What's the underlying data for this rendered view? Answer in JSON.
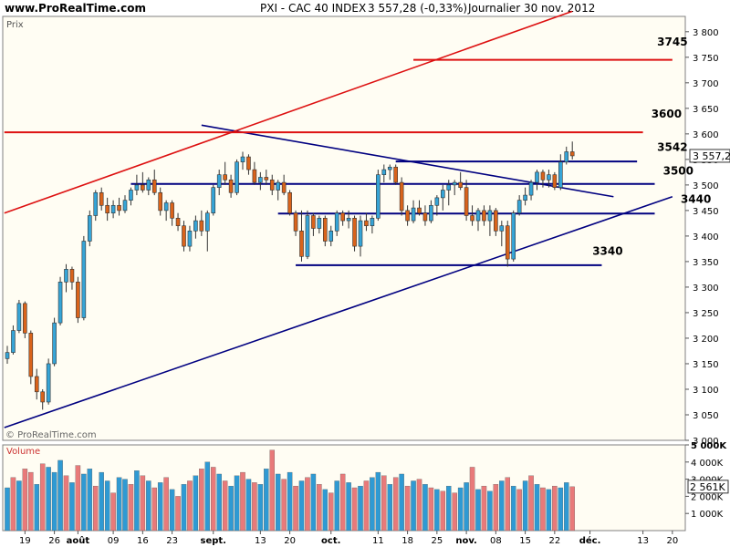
{
  "header": {
    "site": "www.ProRealTime.com",
    "instrument": "PXI - CAC 40 INDEX",
    "quote": "3 557,28 (-0,33%)",
    "period": "Journalier 30 nov. 2012"
  },
  "price_panel_label": "Prix",
  "volume_panel_label": "Volume",
  "watermark": "© ProRealTime.com",
  "colors": {
    "up": "#36a4d6",
    "down": "#d9631b",
    "support": "#000080",
    "resistance": "#dd1111",
    "vol_up": "#2f9ad3",
    "vol_down": "#e87a7a",
    "background": "#fffdf3"
  },
  "chart_data": {
    "type": "candlestick",
    "price_axis": {
      "ylim": [
        3000,
        3830
      ],
      "ticks": [
        3000,
        3050,
        3100,
        3150,
        3200,
        3250,
        3300,
        3350,
        3400,
        3450,
        3500,
        3550,
        3600,
        3650,
        3700,
        3750,
        3800
      ],
      "tick_labels": [
        "3 000",
        "3 050",
        "3 100",
        "3 150",
        "3 200",
        "3 250",
        "3 300",
        "3 350",
        "3 400",
        "3 450",
        "3 500",
        "3 550",
        "3 600",
        "3 650",
        "3 700",
        "3 750",
        "3 800"
      ],
      "last_value_label": "3 557,28"
    },
    "volume_axis": {
      "ylim": [
        0,
        5000
      ],
      "ticks": [
        1000,
        2000,
        3000,
        4000,
        5000
      ],
      "tick_labels": [
        "1 000K",
        "2 000K",
        "3 000K",
        "4 000K",
        "5 000K"
      ],
      "last_value_label": "2 561K"
    },
    "x_axis": {
      "labels": [
        {
          "i": 3,
          "text": "19",
          "bold": false
        },
        {
          "i": 8,
          "text": "26",
          "bold": false
        },
        {
          "i": 12,
          "text": "août",
          "bold": true
        },
        {
          "i": 18,
          "text": "09",
          "bold": false
        },
        {
          "i": 23,
          "text": "16",
          "bold": false
        },
        {
          "i": 28,
          "text": "23",
          "bold": false
        },
        {
          "i": 35,
          "text": "sept.",
          "bold": true
        },
        {
          "i": 43,
          "text": "13",
          "bold": false
        },
        {
          "i": 48,
          "text": "20",
          "bold": false
        },
        {
          "i": 55,
          "text": "oct.",
          "bold": true
        },
        {
          "i": 63,
          "text": "11",
          "bold": false
        },
        {
          "i": 68,
          "text": "18",
          "bold": false
        },
        {
          "i": 73,
          "text": "25",
          "bold": false
        },
        {
          "i": 78,
          "text": "nov.",
          "bold": true
        },
        {
          "i": 83,
          "text": "08",
          "bold": false
        },
        {
          "i": 88,
          "text": "15",
          "bold": false
        },
        {
          "i": 93,
          "text": "22",
          "bold": false
        },
        {
          "i": 99,
          "text": "déc.",
          "bold": true
        },
        {
          "i": 108,
          "text": "13",
          "bold": false
        },
        {
          "i": 113,
          "text": "20",
          "bold": false
        }
      ]
    },
    "candles": [
      [
        3160,
        3185,
        3150,
        3172
      ],
      [
        3172,
        3225,
        3168,
        3215
      ],
      [
        3215,
        3275,
        3210,
        3268
      ],
      [
        3268,
        3272,
        3200,
        3210
      ],
      [
        3210,
        3215,
        3110,
        3125
      ],
      [
        3125,
        3140,
        3080,
        3095
      ],
      [
        3095,
        3100,
        3060,
        3075
      ],
      [
        3075,
        3160,
        3070,
        3150
      ],
      [
        3150,
        3240,
        3145,
        3230
      ],
      [
        3230,
        3320,
        3225,
        3310
      ],
      [
        3310,
        3345,
        3290,
        3335
      ],
      [
        3335,
        3340,
        3295,
        3310
      ],
      [
        3310,
        3320,
        3230,
        3240
      ],
      [
        3240,
        3400,
        3235,
        3390
      ],
      [
        3390,
        3450,
        3380,
        3440
      ],
      [
        3440,
        3490,
        3430,
        3485
      ],
      [
        3485,
        3495,
        3450,
        3460
      ],
      [
        3460,
        3475,
        3430,
        3445
      ],
      [
        3445,
        3470,
        3435,
        3460
      ],
      [
        3460,
        3475,
        3440,
        3450
      ],
      [
        3450,
        3480,
        3445,
        3470
      ],
      [
        3470,
        3495,
        3460,
        3490
      ],
      [
        3490,
        3520,
        3480,
        3500
      ],
      [
        3500,
        3525,
        3485,
        3490
      ],
      [
        3490,
        3515,
        3480,
        3510
      ],
      [
        3510,
        3530,
        3480,
        3485
      ],
      [
        3485,
        3495,
        3440,
        3450
      ],
      [
        3450,
        3470,
        3430,
        3465
      ],
      [
        3465,
        3470,
        3420,
        3435
      ],
      [
        3435,
        3445,
        3410,
        3420
      ],
      [
        3420,
        3430,
        3370,
        3380
      ],
      [
        3380,
        3420,
        3370,
        3410
      ],
      [
        3410,
        3440,
        3395,
        3430
      ],
      [
        3430,
        3450,
        3400,
        3410
      ],
      [
        3410,
        3450,
        3370,
        3445
      ],
      [
        3445,
        3500,
        3440,
        3495
      ],
      [
        3495,
        3530,
        3480,
        3520
      ],
      [
        3520,
        3545,
        3500,
        3510
      ],
      [
        3510,
        3520,
        3475,
        3485
      ],
      [
        3485,
        3550,
        3480,
        3545
      ],
      [
        3545,
        3565,
        3530,
        3555
      ],
      [
        3555,
        3560,
        3520,
        3530
      ],
      [
        3530,
        3545,
        3500,
        3505
      ],
      [
        3505,
        3525,
        3490,
        3515
      ],
      [
        3515,
        3530,
        3500,
        3510
      ],
      [
        3510,
        3520,
        3480,
        3490
      ],
      [
        3490,
        3510,
        3470,
        3505
      ],
      [
        3505,
        3520,
        3480,
        3485
      ],
      [
        3485,
        3490,
        3440,
        3445
      ],
      [
        3445,
        3450,
        3400,
        3410
      ],
      [
        3410,
        3450,
        3350,
        3360
      ],
      [
        3360,
        3450,
        3355,
        3440
      ],
      [
        3440,
        3445,
        3400,
        3415
      ],
      [
        3415,
        3440,
        3405,
        3435
      ],
      [
        3435,
        3440,
        3380,
        3390
      ],
      [
        3390,
        3420,
        3380,
        3410
      ],
      [
        3410,
        3450,
        3400,
        3445
      ],
      [
        3445,
        3450,
        3420,
        3430
      ],
      [
        3430,
        3450,
        3415,
        3435
      ],
      [
        3435,
        3440,
        3370,
        3380
      ],
      [
        3380,
        3440,
        3360,
        3430
      ],
      [
        3430,
        3445,
        3410,
        3420
      ],
      [
        3420,
        3440,
        3405,
        3435
      ],
      [
        3435,
        3530,
        3430,
        3520
      ],
      [
        3520,
        3540,
        3505,
        3530
      ],
      [
        3530,
        3540,
        3510,
        3535
      ],
      [
        3535,
        3540,
        3500,
        3505
      ],
      [
        3505,
        3515,
        3440,
        3450
      ],
      [
        3450,
        3460,
        3420,
        3430
      ],
      [
        3430,
        3470,
        3425,
        3455
      ],
      [
        3455,
        3470,
        3440,
        3445
      ],
      [
        3445,
        3460,
        3420,
        3430
      ],
      [
        3430,
        3470,
        3425,
        3460
      ],
      [
        3460,
        3480,
        3440,
        3475
      ],
      [
        3475,
        3500,
        3450,
        3490
      ],
      [
        3490,
        3510,
        3460,
        3500
      ],
      [
        3500,
        3510,
        3480,
        3505
      ],
      [
        3505,
        3525,
        3490,
        3495
      ],
      [
        3495,
        3510,
        3430,
        3440
      ],
      [
        3440,
        3460,
        3420,
        3430
      ],
      [
        3430,
        3455,
        3410,
        3450
      ],
      [
        3450,
        3460,
        3420,
        3430
      ],
      [
        3430,
        3460,
        3400,
        3450
      ],
      [
        3450,
        3455,
        3400,
        3410
      ],
      [
        3410,
        3430,
        3380,
        3420
      ],
      [
        3420,
        3430,
        3340,
        3355
      ],
      [
        3355,
        3450,
        3350,
        3445
      ],
      [
        3445,
        3480,
        3440,
        3470
      ],
      [
        3470,
        3495,
        3460,
        3480
      ],
      [
        3480,
        3510,
        3470,
        3505
      ],
      [
        3505,
        3530,
        3490,
        3525
      ],
      [
        3525,
        3530,
        3495,
        3510
      ],
      [
        3510,
        3530,
        3495,
        3520
      ],
      [
        3520,
        3525,
        3490,
        3495
      ],
      [
        3495,
        3560,
        3490,
        3545
      ],
      [
        3545,
        3575,
        3540,
        3565
      ],
      [
        3565,
        3585,
        3550,
        3557
      ]
    ],
    "volumes": [
      [
        2500,
        1
      ],
      [
        3100,
        0
      ],
      [
        2900,
        1
      ],
      [
        3600,
        0
      ],
      [
        3400,
        0
      ],
      [
        2700,
        1
      ],
      [
        3900,
        0
      ],
      [
        3700,
        1
      ],
      [
        3400,
        1
      ],
      [
        4100,
        1
      ],
      [
        3200,
        0
      ],
      [
        2800,
        1
      ],
      [
        3800,
        0
      ],
      [
        3300,
        1
      ],
      [
        3600,
        1
      ],
      [
        2600,
        0
      ],
      [
        3400,
        1
      ],
      [
        2900,
        1
      ],
      [
        2200,
        0
      ],
      [
        3100,
        1
      ],
      [
        3000,
        1
      ],
      [
        2700,
        0
      ],
      [
        3500,
        1
      ],
      [
        3200,
        0
      ],
      [
        2900,
        1
      ],
      [
        2500,
        0
      ],
      [
        2800,
        1
      ],
      [
        3100,
        0
      ],
      [
        2400,
        1
      ],
      [
        2000,
        0
      ],
      [
        2700,
        1
      ],
      [
        2900,
        0
      ],
      [
        3200,
        1
      ],
      [
        3600,
        0
      ],
      [
        4000,
        1
      ],
      [
        3700,
        0
      ],
      [
        3300,
        1
      ],
      [
        2900,
        0
      ],
      [
        2600,
        1
      ],
      [
        3200,
        1
      ],
      [
        3400,
        0
      ],
      [
        3000,
        1
      ],
      [
        2800,
        0
      ],
      [
        2700,
        1
      ],
      [
        3600,
        1
      ],
      [
        4700,
        0
      ],
      [
        3300,
        1
      ],
      [
        3000,
        0
      ],
      [
        3400,
        1
      ],
      [
        2600,
        0
      ],
      [
        2900,
        1
      ],
      [
        3100,
        0
      ],
      [
        3300,
        1
      ],
      [
        2700,
        0
      ],
      [
        2400,
        1
      ],
      [
        2200,
        0
      ],
      [
        2900,
        1
      ],
      [
        3300,
        0
      ],
      [
        2800,
        1
      ],
      [
        2500,
        0
      ],
      [
        2600,
        1
      ],
      [
        2900,
        0
      ],
      [
        3100,
        1
      ],
      [
        3400,
        1
      ],
      [
        3200,
        0
      ],
      [
        2700,
        1
      ],
      [
        3100,
        0
      ],
      [
        3300,
        1
      ],
      [
        2600,
        0
      ],
      [
        2900,
        1
      ],
      [
        3000,
        0
      ],
      [
        2700,
        1
      ],
      [
        2500,
        0
      ],
      [
        2400,
        1
      ],
      [
        2300,
        0
      ],
      [
        2600,
        1
      ],
      [
        2200,
        0
      ],
      [
        2500,
        1
      ],
      [
        2800,
        1
      ],
      [
        3700,
        0
      ],
      [
        2400,
        1
      ],
      [
        2600,
        0
      ],
      [
        2300,
        1
      ],
      [
        2700,
        0
      ],
      [
        2900,
        1
      ],
      [
        3100,
        0
      ],
      [
        2600,
        1
      ],
      [
        2400,
        0
      ],
      [
        2900,
        1
      ],
      [
        3200,
        0
      ],
      [
        2700,
        1
      ],
      [
        2500,
        0
      ],
      [
        2400,
        1
      ],
      [
        2600,
        0
      ],
      [
        2500,
        1
      ],
      [
        2800,
        1
      ],
      [
        2561,
        0
      ]
    ],
    "trendlines": [
      {
        "color": "support",
        "i1": -0.5,
        "p1": 3025,
        "i2": 113,
        "p2": 3477
      },
      {
        "color": "support",
        "i1": 33,
        "p1": 3617,
        "i2": 103,
        "p2": 3477
      },
      {
        "color": "resistance",
        "i1": -0.5,
        "p1": 3445,
        "i2": 96,
        "p2": 3840
      }
    ],
    "hlines": [
      {
        "color": "resistance",
        "i1": -0.5,
        "i2": 108,
        "p": 3603
      },
      {
        "color": "resistance",
        "i1": 69,
        "i2": 113,
        "p": 3745
      },
      {
        "color": "support",
        "i1": 66,
        "i2": 107,
        "p": 3546
      },
      {
        "color": "support",
        "i1": 21,
        "i2": 110,
        "p": 3502
      },
      {
        "color": "support",
        "i1": 46,
        "i2": 110,
        "p": 3444
      },
      {
        "color": "support",
        "i1": 49,
        "i2": 101,
        "p": 3343
      }
    ],
    "level_labels": [
      {
        "text": "3745",
        "i": 113,
        "p": 3773
      },
      {
        "text": "3600",
        "i": 112,
        "p": 3632
      },
      {
        "text": "3542",
        "i": 113,
        "p": 3567
      },
      {
        "text": "3500",
        "i": 114,
        "p": 3520
      },
      {
        "text": "3440",
        "i": 117,
        "p": 3465
      },
      {
        "text": "3340",
        "i": 102,
        "p": 3363
      }
    ]
  }
}
